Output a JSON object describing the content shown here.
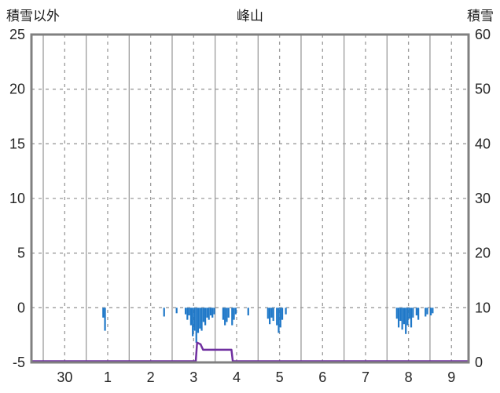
{
  "header": {
    "left_axis_title": "積雪以外",
    "title": "峰山",
    "right_axis_title": "積雪"
  },
  "chart_data": {
    "type": "bar",
    "title": "峰山",
    "grid": true,
    "legend": false,
    "left_axis": {
      "title": "積雪以外",
      "min": -5,
      "max": 25,
      "ticks": [
        25,
        20,
        15,
        10,
        5,
        0,
        -5
      ]
    },
    "right_axis": {
      "title": "積雪",
      "min": 0,
      "max": 60,
      "ticks": [
        60,
        50,
        40,
        30,
        20,
        10,
        0
      ]
    },
    "x_axis": {
      "labels": [
        "30",
        "1",
        "2",
        "3",
        "4",
        "5",
        "6",
        "7",
        "8",
        "9"
      ],
      "note": "days, hourly resolution; solid gridline at each day boundary, dashed at mid-day"
    },
    "series": [
      {
        "name": "precipitation-bars",
        "type": "bar",
        "axis": "left",
        "direction": "down-from-zero",
        "color": "#1f78c8",
        "points_format": "[day_index, hour, depth_below_zero]",
        "points": [
          [
            1,
            9,
            0.9
          ],
          [
            1,
            10,
            2.1
          ],
          [
            2,
            19,
            0.8
          ],
          [
            3,
            2,
            0.5
          ],
          [
            3,
            7,
            0.6
          ],
          [
            3,
            8,
            1.1
          ],
          [
            3,
            9,
            0.7
          ],
          [
            3,
            10,
            1.6
          ],
          [
            3,
            11,
            2.6
          ],
          [
            3,
            12,
            2.1
          ],
          [
            3,
            13,
            3.2
          ],
          [
            3,
            14,
            2.3
          ],
          [
            3,
            15,
            1.9
          ],
          [
            3,
            16,
            2.1
          ],
          [
            3,
            17,
            1.3
          ],
          [
            3,
            18,
            1.6
          ],
          [
            3,
            19,
            0.9
          ],
          [
            3,
            20,
            1.1
          ],
          [
            3,
            21,
            0.7
          ],
          [
            3,
            22,
            0.9
          ],
          [
            3,
            23,
            0.6
          ],
          [
            4,
            4,
            1.1
          ],
          [
            4,
            5,
            1.6
          ],
          [
            4,
            6,
            1.3
          ],
          [
            4,
            7,
            0.9
          ],
          [
            4,
            9,
            1.6
          ],
          [
            4,
            10,
            1.1
          ],
          [
            4,
            11,
            0.6
          ],
          [
            4,
            18,
            0.7
          ],
          [
            5,
            5,
            1.0
          ],
          [
            5,
            6,
            1.5
          ],
          [
            5,
            7,
            0.9
          ],
          [
            5,
            8,
            1.2
          ],
          [
            5,
            10,
            1.6
          ],
          [
            5,
            11,
            2.3
          ],
          [
            5,
            12,
            1.8
          ],
          [
            5,
            13,
            1.1
          ],
          [
            5,
            15,
            0.6
          ],
          [
            8,
            5,
            1.0
          ],
          [
            8,
            6,
            1.8
          ],
          [
            8,
            7,
            1.2
          ],
          [
            8,
            8,
            2.0
          ],
          [
            8,
            9,
            1.5
          ],
          [
            8,
            10,
            2.4
          ],
          [
            8,
            11,
            1.6
          ],
          [
            8,
            12,
            1.0
          ],
          [
            8,
            13,
            1.8
          ],
          [
            8,
            14,
            0.9
          ],
          [
            8,
            16,
            0.7
          ],
          [
            8,
            17,
            1.1
          ],
          [
            8,
            21,
            0.8
          ],
          [
            8,
            22,
            0.6
          ],
          [
            9,
            0,
            0.7
          ],
          [
            9,
            1,
            0.5
          ]
        ]
      },
      {
        "name": "snow-depth-line",
        "type": "line",
        "axis": "right",
        "color": "#7030a0",
        "points_format": "[day_position, cm]",
        "points": [
          [
            -0.274,
            0
          ],
          [
            3.55,
            0
          ],
          [
            3.58,
            3.4
          ],
          [
            3.66,
            3.1
          ],
          [
            3.72,
            2.1
          ],
          [
            4.38,
            2.1
          ],
          [
            4.41,
            0
          ],
          [
            9.89,
            0
          ]
        ]
      }
    ]
  }
}
